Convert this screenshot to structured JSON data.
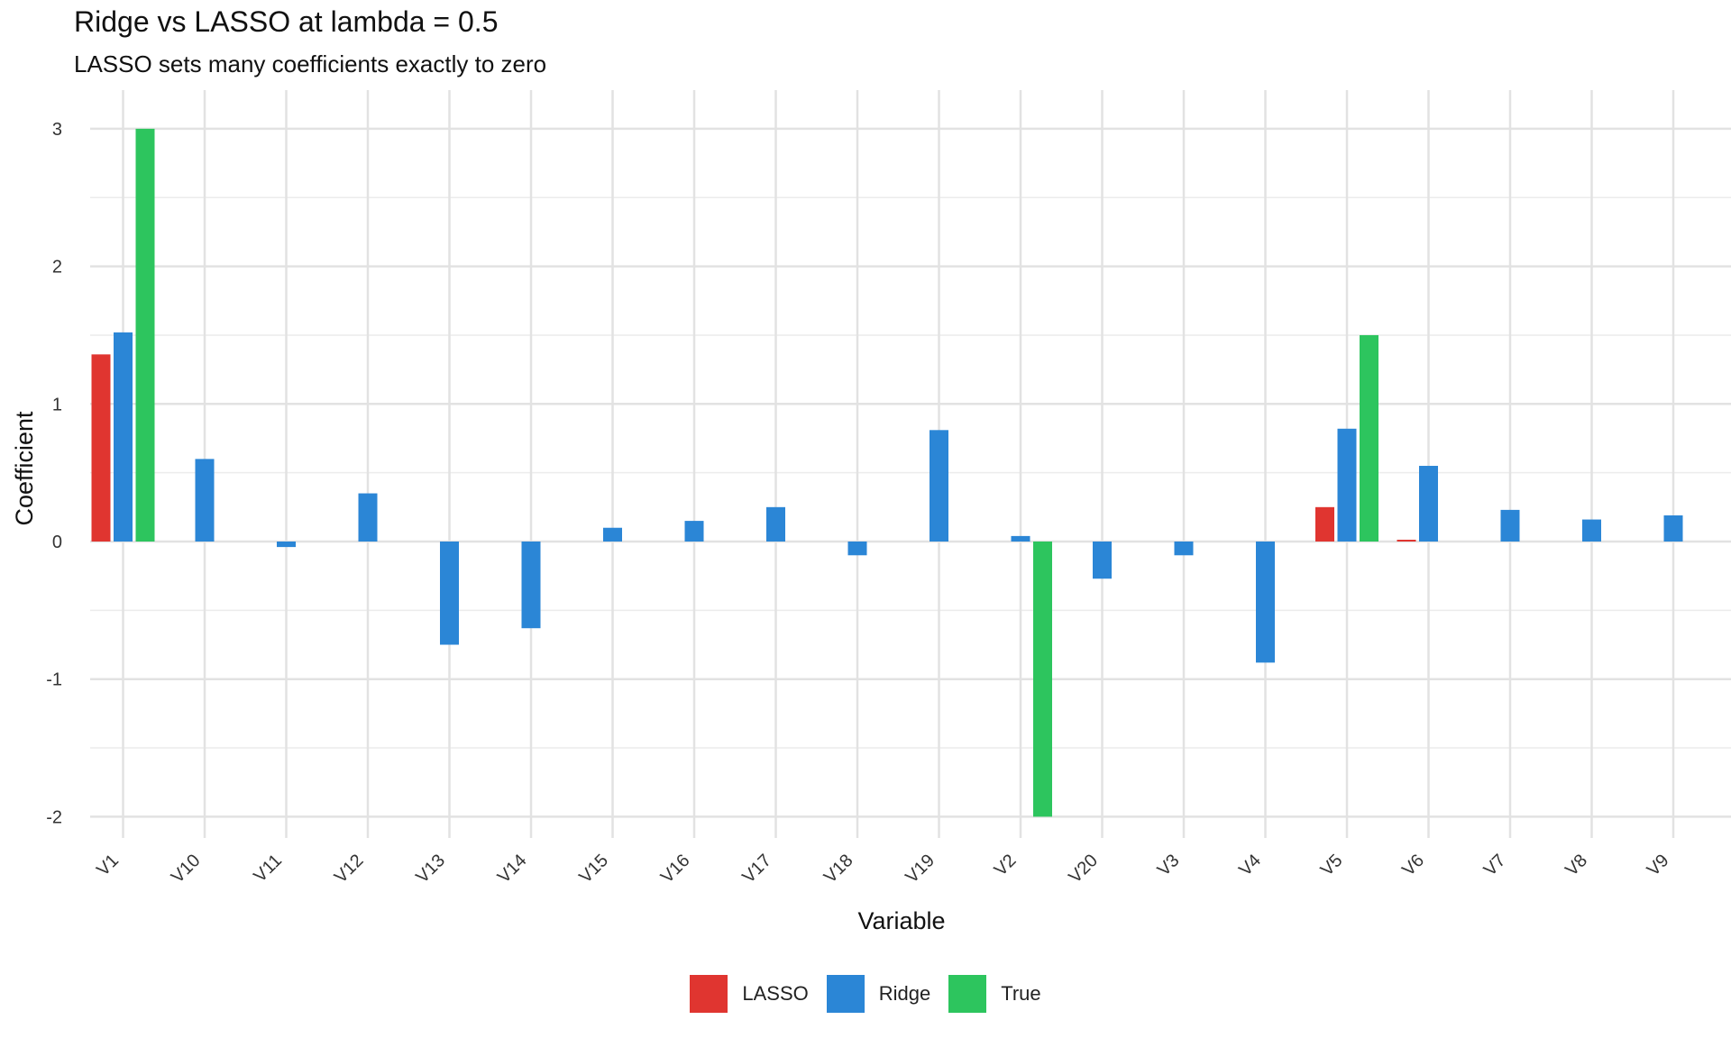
{
  "chart_data": {
    "type": "bar",
    "title": "Ridge vs LASSO at lambda = 0.5",
    "subtitle": "LASSO sets many coefficients exactly to zero",
    "xlabel": "Variable",
    "ylabel": "Coefficient",
    "ylim": [
      -2.2,
      3.2
    ],
    "yticks": [
      -2,
      -1,
      0,
      1,
      2,
      3
    ],
    "grid": true,
    "legend_position": "bottom",
    "categories": [
      "V1",
      "V10",
      "V11",
      "V12",
      "V13",
      "V14",
      "V15",
      "V16",
      "V17",
      "V18",
      "V19",
      "V2",
      "V20",
      "V3",
      "V4",
      "V5",
      "V6",
      "V7",
      "V8",
      "V9"
    ],
    "series": [
      {
        "name": "LASSO",
        "color": "#E03530",
        "values": [
          1.36,
          0,
          0,
          0,
          0,
          0,
          0,
          0,
          0,
          0,
          0,
          0,
          0,
          0,
          0,
          0.25,
          0.01,
          0,
          0,
          0
        ]
      },
      {
        "name": "Ridge",
        "color": "#2B86D6",
        "values": [
          1.52,
          0.6,
          -0.04,
          0.35,
          -0.75,
          -0.63,
          0.1,
          0.15,
          0.25,
          -0.1,
          0.81,
          0.04,
          -0.27,
          -0.1,
          -0.88,
          0.82,
          0.55,
          0.23,
          0.16,
          0.19
        ]
      },
      {
        "name": "True",
        "color": "#2DC55E",
        "values": [
          3,
          0,
          0,
          0,
          0,
          0,
          0,
          0,
          0,
          0,
          0,
          -2,
          0,
          0,
          0,
          1.5,
          0,
          0,
          0,
          0
        ]
      }
    ]
  }
}
